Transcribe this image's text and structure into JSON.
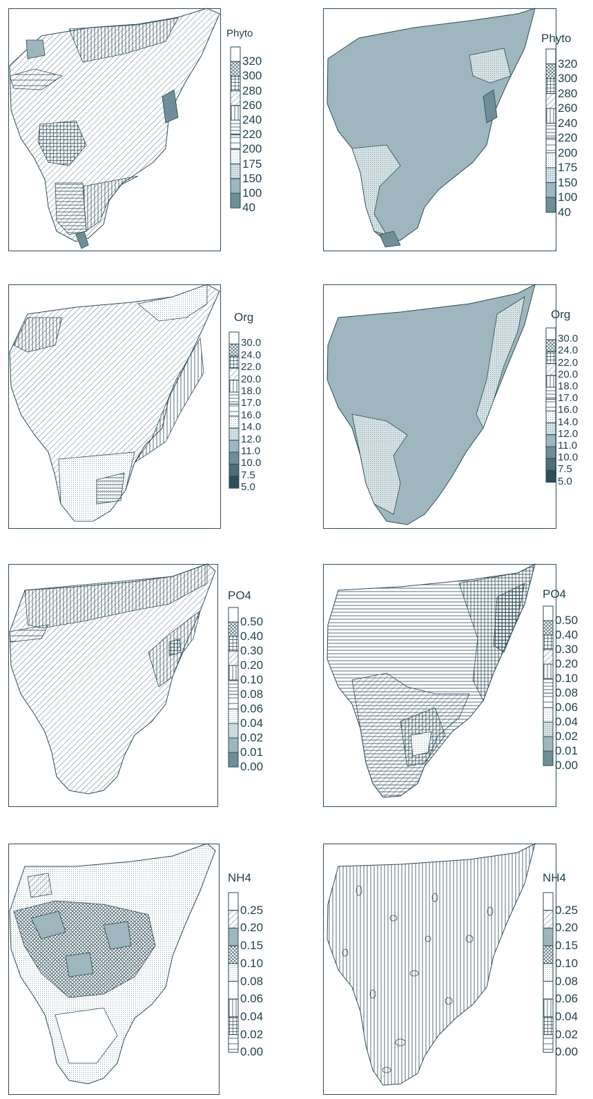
{
  "colors": {
    "ink": "#2b4a55",
    "fill_dark": "#6f8e97",
    "fill_mid": "#9fb7be",
    "fill_light": "#c9d8dc"
  },
  "panels": [
    {
      "title": "Phyto",
      "labels": [
        "320",
        "300",
        "280",
        "260",
        "240",
        "220",
        "200",
        "175",
        "150",
        "100",
        "40"
      ],
      "patterns": [
        "white",
        "cross",
        "grid",
        "diag",
        "vert",
        "horiz",
        "hlines",
        "dots",
        "light",
        "mid",
        "dark"
      ]
    },
    {
      "title": "Phyto",
      "labels": [
        "320",
        "300",
        "280",
        "260",
        "240",
        "220",
        "200",
        "175",
        "150",
        "100",
        "40"
      ],
      "patterns": [
        "white",
        "cross",
        "grid",
        "diag",
        "vert",
        "horiz",
        "hlines",
        "dots",
        "light",
        "mid",
        "dark"
      ]
    },
    {
      "title": "Org",
      "labels": [
        "30.0",
        "24.0",
        "22.0",
        "20.0",
        "18.0",
        "17.0",
        "16.0",
        "14.0",
        "12.0",
        "11.0",
        "10.0",
        "7.5",
        "5.0"
      ],
      "patterns": [
        "white",
        "cross",
        "grid",
        "diag",
        "vert",
        "horiz",
        "hlines",
        "dots",
        "light",
        "mid",
        "dark",
        "darker",
        "darkest"
      ]
    },
    {
      "title": "Org",
      "labels": [
        "30.0",
        "24.0",
        "22.0",
        "20.0",
        "18.0",
        "17.0",
        "16.0",
        "14.0",
        "12.0",
        "11.0",
        "10.0",
        "7.5",
        "5.0"
      ],
      "patterns": [
        "white",
        "cross",
        "grid",
        "diag",
        "vert",
        "horiz",
        "hlines",
        "dots",
        "light",
        "mid",
        "dark",
        "darker",
        "darkest"
      ]
    },
    {
      "title": "PO4",
      "labels": [
        "0.50",
        "0.40",
        "0.30",
        "0.20",
        "0.10",
        "0.08",
        "0.06",
        "0.04",
        "0.02",
        "0.01",
        "0.00"
      ],
      "patterns": [
        "white",
        "cross",
        "grid",
        "diag",
        "vert",
        "horiz",
        "hlines",
        "dots",
        "light",
        "mid",
        "dark"
      ]
    },
    {
      "title": "PO4",
      "labels": [
        "0.50",
        "0.40",
        "0.30",
        "0.20",
        "0.10",
        "0.08",
        "0.06",
        "0.04",
        "0.02",
        "0.01",
        "0.00"
      ],
      "patterns": [
        "white",
        "cross",
        "grid",
        "diag",
        "vert",
        "horiz",
        "hlines",
        "dots",
        "light",
        "mid",
        "dark"
      ]
    },
    {
      "title": "NH4",
      "labels": [
        "0.25",
        "0.20",
        "0.15",
        "0.10",
        "0.08",
        "0.06",
        "0.04",
        "0.02",
        "0.00"
      ],
      "patterns": [
        "white",
        "diag",
        "mid",
        "cross",
        "dots",
        "white",
        "vert",
        "grid",
        "hlines"
      ]
    },
    {
      "title": "NH4",
      "labels": [
        "0.25",
        "0.20",
        "0.15",
        "0.10",
        "0.08",
        "0.06",
        "0.04",
        "0.02",
        "0.00"
      ],
      "patterns": [
        "white",
        "diag",
        "mid",
        "cross",
        "dots",
        "white",
        "vert",
        "grid",
        "hlines"
      ]
    }
  ]
}
